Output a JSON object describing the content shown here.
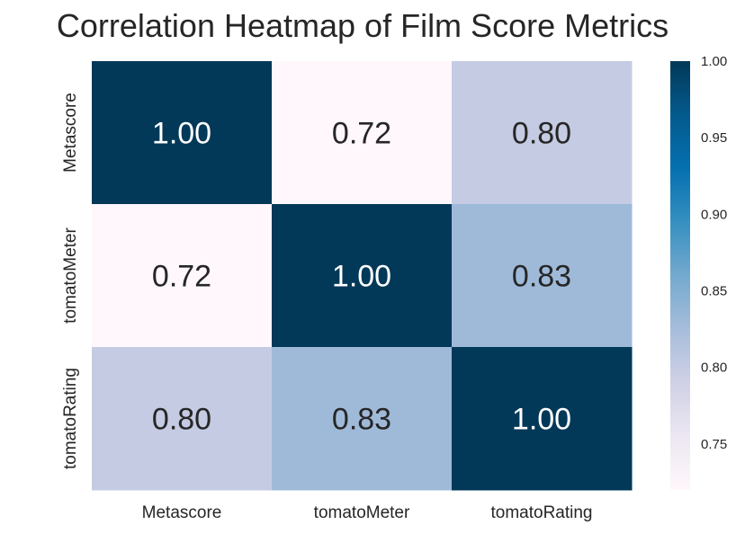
{
  "chart_data": {
    "type": "heatmap",
    "title": "Correlation Heatmap of Film Score Metrics",
    "xlabel": "",
    "ylabel": "",
    "x_categories": [
      "Metascore",
      "tomatoMeter",
      "tomatoRating"
    ],
    "y_categories": [
      "Metascore",
      "tomatoMeter",
      "tomatoRating"
    ],
    "values": [
      [
        1.0,
        0.72,
        0.8
      ],
      [
        0.72,
        1.0,
        0.83
      ],
      [
        0.8,
        0.83,
        1.0
      ]
    ],
    "value_format": "2 decimals",
    "colormap": "PuBu",
    "colorbar": {
      "range": [
        0.72,
        1.0
      ],
      "ticks": [
        0.75,
        0.8,
        0.85,
        0.9,
        0.95,
        1.0
      ],
      "tick_labels": [
        "0.75",
        "0.80",
        "0.85",
        "0.90",
        "0.95",
        "1.00"
      ],
      "placement": "right"
    },
    "grid": false
  }
}
